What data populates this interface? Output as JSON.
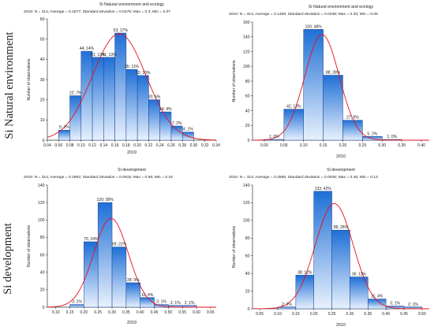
{
  "row_labels": [
    "Si Natural environment",
    "Si development"
  ],
  "colors": {
    "bar_top": "#1f6fd6",
    "bar_bottom": "#e8f1fd",
    "bar_edge": "#1a3f8a",
    "curve": "#e8101a",
    "axis": "#333333",
    "text": "#222222"
  },
  "chart_data": [
    {
      "type": "bar",
      "title": "Si Natural environment and ecology",
      "subtitle": "2019: N = 314; Average = 0.1677; Standard deviation = 0.0476; Max = 0.3; Min = 0.07",
      "xlabel": "2019",
      "ylabel": "Number of observations",
      "bin_width": 0.02,
      "xlim": [
        0.04,
        0.34
      ],
      "ylim": [
        0,
        60
      ],
      "xticks": [
        0.04,
        0.06,
        0.08,
        0.1,
        0.12,
        0.14,
        0.16,
        0.18,
        0.2,
        0.22,
        0.24,
        0.26,
        0.28,
        0.3,
        0.32,
        0.34
      ],
      "xtick_labels": [
        "0.04",
        "0.06",
        "0.08",
        "0.10",
        "0.12",
        "0.14",
        "0.16",
        "0.18",
        "0.20",
        "0.22",
        "0.24",
        "0.26",
        "0.28",
        "0.30",
        "0.32",
        "0.34"
      ],
      "yticks": [
        0,
        10,
        20,
        30,
        40,
        50,
        60
      ],
      "bins": [
        {
          "x": 0.07,
          "value": 5,
          "label": "5; 2%"
        },
        {
          "x": 0.09,
          "value": 22,
          "label": "22; 7%"
        },
        {
          "x": 0.11,
          "value": 44,
          "label": "44; 14%"
        },
        {
          "x": 0.13,
          "value": 41,
          "label": "41; 13%"
        },
        {
          "x": 0.15,
          "value": 41,
          "label": "41; 13%"
        },
        {
          "x": 0.17,
          "value": 53,
          "label": "53; 17%"
        },
        {
          "x": 0.19,
          "value": 35,
          "label": "35; 11%"
        },
        {
          "x": 0.21,
          "value": 32,
          "label": "32; 10%"
        },
        {
          "x": 0.23,
          "value": 20,
          "label": "20; 6%"
        },
        {
          "x": 0.25,
          "value": 14,
          "label": "14; 4%"
        },
        {
          "x": 0.27,
          "value": 7,
          "label": "7; 2%"
        },
        {
          "x": 0.29,
          "value": 4,
          "label": "4; 1%"
        }
      ],
      "normal": {
        "mean": 0.1677,
        "sd": 0.0476,
        "n": 314
      }
    },
    {
      "type": "bar",
      "title": "Si Natural environment and ecology",
      "subtitle": "2010: N = 314; Average = 0.1469; Standard deviation = 0.0438; Max = 0.33; Min = 0.05",
      "xlabel": "2010",
      "ylabel": "Number of observations",
      "bin_width": 0.05,
      "xlim": [
        -0.03,
        0.42
      ],
      "ylim": [
        0,
        160
      ],
      "xticks": [
        0,
        0.05,
        0.1,
        0.15,
        0.2,
        0.25,
        0.3,
        0.35,
        0.4
      ],
      "xtick_labels": [
        "0.00",
        "0.05",
        "0.10",
        "0.15",
        "0.20",
        "0.25",
        "0.30",
        "0.35",
        "0.40"
      ],
      "yticks": [
        0,
        20,
        40,
        60,
        80,
        100,
        120,
        140,
        160
      ],
      "bins": [
        {
          "x": 0.025,
          "value": 1,
          "label": "1; 0%"
        },
        {
          "x": 0.075,
          "value": 42,
          "label": "42; 13%"
        },
        {
          "x": 0.125,
          "value": 150,
          "label": "150; 48%"
        },
        {
          "x": 0.175,
          "value": 88,
          "label": "88; 28%"
        },
        {
          "x": 0.225,
          "value": 27,
          "label": "27; 9%"
        },
        {
          "x": 0.275,
          "value": 5,
          "label": "5; 2%"
        },
        {
          "x": 0.325,
          "value": 1,
          "label": "1; 0%"
        }
      ],
      "normal": {
        "mean": 0.1469,
        "sd": 0.0438,
        "n": 314
      }
    },
    {
      "type": "bar",
      "title": "Si development",
      "subtitle": "2019: N = 314; Average = 0.2962; Standard deviation = 0.0615; Max = 0.59; Min = 0.18",
      "xlabel": "2019",
      "ylabel": "Number of observations",
      "bin_width": 0.05,
      "xlim": [
        0.07,
        0.67
      ],
      "ylim": [
        0,
        140
      ],
      "xticks": [
        0.1,
        0.15,
        0.2,
        0.25,
        0.3,
        0.35,
        0.4,
        0.45,
        0.5,
        0.55,
        0.6,
        0.65
      ],
      "xtick_labels": [
        "0.10",
        "0.15",
        "0.20",
        "0.25",
        "0.30",
        "0.35",
        "0.40",
        "0.45",
        "0.50",
        "0.55",
        "0.60",
        "0.65"
      ],
      "yticks": [
        0,
        20,
        40,
        60,
        80,
        100,
        120,
        140
      ],
      "bins": [
        {
          "x": 0.175,
          "value": 3,
          "label": "3; 1%"
        },
        {
          "x": 0.225,
          "value": 75,
          "label": "75; 24%"
        },
        {
          "x": 0.275,
          "value": 120,
          "label": "120; 38%"
        },
        {
          "x": 0.325,
          "value": 69,
          "label": "69; 22%"
        },
        {
          "x": 0.375,
          "value": 28,
          "label": "28; 9%"
        },
        {
          "x": 0.425,
          "value": 11,
          "label": "11; 4%"
        },
        {
          "x": 0.475,
          "value": 3,
          "label": "3; 1%"
        },
        {
          "x": 0.525,
          "value": 2,
          "label": "2; 1%"
        },
        {
          "x": 0.575,
          "value": 2,
          "label": "2; 1%"
        }
      ],
      "normal": {
        "mean": 0.2962,
        "sd": 0.0615,
        "n": 314
      }
    },
    {
      "type": "bar",
      "title": "Si development",
      "subtitle": "2010: N = 314; Average = 0.2566; Standard deviation = 0.0526; Max = 0.46; Min = 0.13",
      "xlabel": "2010",
      "ylabel": "Number of observations",
      "bin_width": 0.05,
      "xlim": [
        0.03,
        0.52
      ],
      "ylim": [
        0,
        140
      ],
      "xticks": [
        0.05,
        0.1,
        0.15,
        0.2,
        0.25,
        0.3,
        0.35,
        0.4,
        0.45,
        0.5
      ],
      "xtick_labels": [
        "0.05",
        "0.10",
        "0.15",
        "0.20",
        "0.25",
        "0.30",
        "0.35",
        "0.40",
        "0.45",
        "0.50"
      ],
      "yticks": [
        0,
        20,
        40,
        60,
        80,
        100,
        120,
        140
      ],
      "bins": [
        {
          "x": 0.125,
          "value": 2,
          "label": "2; 1%"
        },
        {
          "x": 0.175,
          "value": 38,
          "label": "38; 12%"
        },
        {
          "x": 0.225,
          "value": 133,
          "label": "133; 42%"
        },
        {
          "x": 0.275,
          "value": 89,
          "label": "89; 28%"
        },
        {
          "x": 0.325,
          "value": 36,
          "label": "36; 11%"
        },
        {
          "x": 0.375,
          "value": 11,
          "label": "11; 4%"
        },
        {
          "x": 0.425,
          "value": 3,
          "label": "3; 1%"
        },
        {
          "x": 0.475,
          "value": 2,
          "label": "2; 1%"
        }
      ],
      "normal": {
        "mean": 0.2566,
        "sd": 0.0526,
        "n": 314
      }
    }
  ]
}
